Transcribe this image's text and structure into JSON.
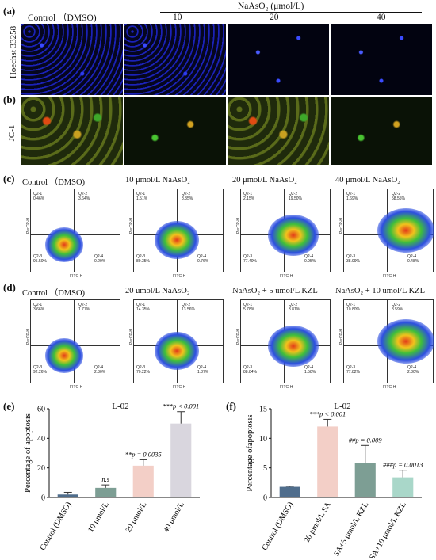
{
  "panels": {
    "a": "(a)",
    "b": "(b)",
    "c": "(c)",
    "d": "(d)",
    "e": "(e)",
    "f": "(f)"
  },
  "header_row": {
    "control": "Control （DMSO)",
    "treatment": "NaAsO₂ (μmol/L)",
    "doses": [
      "10",
      "20",
      "40"
    ]
  },
  "row_labels": {
    "hoechst": "Hoechst 33258",
    "jc1": "JC-1"
  },
  "flow_c": {
    "titles": [
      "Control （DMSO)",
      "10 μmol/L NaAsO₂",
      "20 μmol/L NaAsO₂",
      "40 μmol/L NaAsO₂"
    ],
    "q1": [
      "Q2-1\n0.46%",
      "Q2-1\n1.51%",
      "Q2-1\n2.15%",
      "Q2-1\n1.69%"
    ],
    "q2": [
      "Q2-2\n3.64%",
      "Q2-2\n8.35%",
      "Q2-2\n19.50%",
      "Q2-2\n58.55%"
    ],
    "q3": [
      "Q2-3\n95.50%",
      "Q2-3\n89.35%",
      "Q2-3\n77.40%",
      "Q2-3\n38.99%"
    ],
    "q4": [
      "Q2-4\n0.20%",
      "Q2-4\n0.76%",
      "Q2-4\n0.95%",
      "Q2-4\n0.48%"
    ],
    "xlabel": "FITC-H",
    "ylabel": "PerCP-H"
  },
  "flow_d": {
    "titles": [
      "Control （DMSO)",
      "20 umol/L NaAsO₂",
      "NaAsO₂ + 5 umol/L KZL",
      "NaAsO₂ + 10 umol/L KZL"
    ],
    "q1": [
      "Q2-1\n3.66%",
      "Q2-1\n14.35%",
      "Q2-1\n5.78%",
      "Q2-1\n10.80%"
    ],
    "q2": [
      "Q2-2\n1.77%",
      "Q2-2\n13.56%",
      "Q2-2\n3.81%",
      "Q2-2\n8.59%"
    ],
    "q3": [
      "Q2-3\n92.26%",
      "Q2-3\n70.22%",
      "Q2-3\n88.84%",
      "Q2-3\n77.82%"
    ],
    "q4": [
      "Q2-4\n2.30%",
      "Q2-4\n1.87%",
      "Q2-4\n1.58%",
      "Q2-4\n2.80%"
    ],
    "xlabel": "FITC-H",
    "ylabel": "PerCP-H"
  },
  "chart_data": [
    {
      "type": "bar",
      "panel": "(e)",
      "title": "L-02",
      "ylabel": "Percentage of apoptosis",
      "categories": [
        "Control (DMSO)",
        "10 μmol/L",
        "20 μmol/L",
        "40 μmol/L"
      ],
      "values": [
        2,
        6.5,
        21.5,
        50
      ],
      "errors": [
        1.5,
        2,
        4,
        8
      ],
      "colors": [
        "#4f6d8c",
        "#7d9e94",
        "#f3cfc7",
        "#d9d6de"
      ],
      "annotations": [
        "",
        "n.s",
        "**p = 0.0035",
        "***p < 0.001"
      ],
      "ylim": [
        0,
        60
      ],
      "yticks": [
        "0",
        "20",
        "40",
        "60"
      ]
    },
    {
      "type": "bar",
      "panel": "(f)",
      "title": "L-02",
      "ylabel": "Percentage ofapoptosis",
      "categories": [
        "Control (DMSO)",
        "20 μmol/L SA",
        "SA+5 μmol/L KZL",
        "SA+10 μmol/L KZL"
      ],
      "values": [
        1.8,
        12,
        5.8,
        3.4
      ],
      "errors": [
        0.1,
        1.2,
        3,
        1.2
      ],
      "colors": [
        "#4f6d8c",
        "#f3cfc7",
        "#7d9e94",
        "#a9d7c9"
      ],
      "annotations": [
        "",
        "***p < 0.001",
        "##p = 0.009",
        "###p = 0.0013"
      ],
      "ylim": [
        0,
        15
      ],
      "yticks": [
        "0",
        "5",
        "10",
        "15"
      ]
    }
  ]
}
